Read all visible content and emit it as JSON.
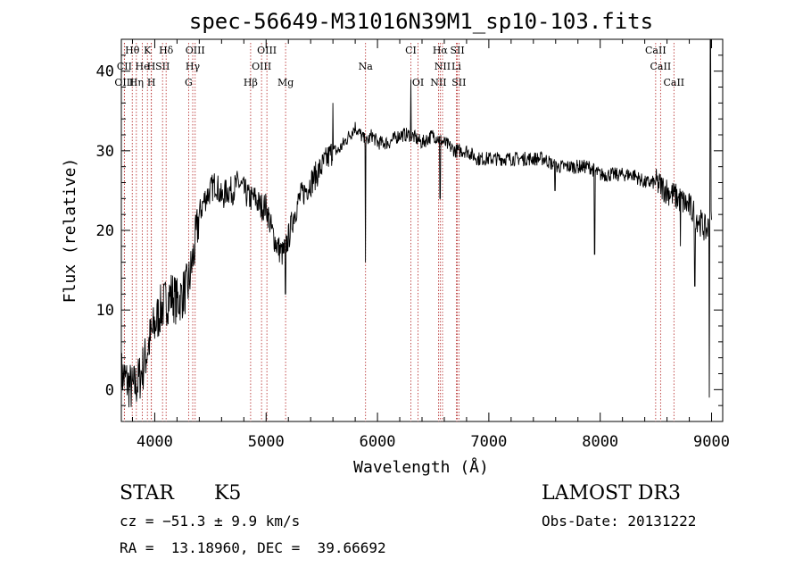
{
  "chart_data": {
    "type": "line",
    "title": "spec-56649-M31016N39M1_sp10-103.fits",
    "xlabel": "Wavelength (Å)",
    "ylabel": "Flux (relative)",
    "xlim": [
      3700,
      9100
    ],
    "ylim": [
      -4,
      44
    ],
    "xticks": [
      4000,
      5000,
      6000,
      7000,
      8000,
      9000
    ],
    "yticks": [
      0,
      10,
      20,
      30,
      40
    ],
    "xtick_labels": [
      "4000",
      "5000",
      "6000",
      "7000",
      "8000",
      "9000"
    ],
    "ytick_labels": [
      "0",
      "10",
      "20",
      "30",
      "40"
    ],
    "line_color": "#000000",
    "marker_color": "#b22222",
    "spectrum": {
      "name": "flux",
      "x": [
        3700,
        3750,
        3800,
        3850,
        3900,
        3950,
        4000,
        4050,
        4100,
        4150,
        4200,
        4250,
        4300,
        4350,
        4400,
        4450,
        4500,
        4550,
        4600,
        4650,
        4700,
        4750,
        4800,
        4850,
        4900,
        4950,
        5000,
        5050,
        5100,
        5150,
        5200,
        5250,
        5300,
        5350,
        5400,
        5450,
        5500,
        5550,
        5600,
        5650,
        5700,
        5750,
        5800,
        5850,
        5900,
        5950,
        6000,
        6100,
        6200,
        6300,
        6400,
        6500,
        6600,
        6700,
        6800,
        6900,
        7000,
        7100,
        7200,
        7300,
        7400,
        7500,
        7600,
        7700,
        7800,
        7900,
        8000,
        8100,
        8200,
        8300,
        8400,
        8500,
        8600,
        8700,
        8800,
        8900,
        8950,
        9000
      ],
      "y": [
        2,
        1,
        0,
        1,
        3,
        6,
        8,
        10,
        11,
        12,
        11,
        12,
        13,
        17,
        22,
        24,
        25,
        26,
        24,
        25,
        25,
        26,
        25,
        24,
        24,
        23,
        23,
        20,
        18,
        17,
        19,
        22,
        24,
        25,
        26,
        27,
        28,
        29,
        30,
        30,
        31,
        32,
        33,
        32,
        31,
        32,
        31,
        31,
        32,
        32,
        31,
        32,
        31,
        30,
        30,
        29,
        29,
        29,
        29,
        29,
        29,
        29,
        28,
        28,
        28,
        28,
        27,
        27,
        27,
        27,
        26,
        26,
        25,
        24,
        23,
        21,
        20,
        21
      ]
    },
    "dips": [
      {
        "x": 5175,
        "y": 12
      },
      {
        "x": 5892,
        "y": 16
      },
      {
        "x": 6563,
        "y": 24
      },
      {
        "x": 7594,
        "y": 25
      },
      {
        "x": 7950,
        "y": 17
      },
      {
        "x": 8720,
        "y": 18
      },
      {
        "x": 8850,
        "y": 13
      },
      {
        "x": 8980,
        "y": -1
      }
    ],
    "spikes": [
      {
        "x": 5600,
        "y": 36
      },
      {
        "x": 6300,
        "y": 39
      },
      {
        "x": 8990,
        "y": 44
      }
    ],
    "lines": [
      {
        "label": "Hθ",
        "x": 3798,
        "row": 0
      },
      {
        "label": "K",
        "x": 3934,
        "row": 0
      },
      {
        "label": "Hδ",
        "x": 4102,
        "row": 0
      },
      {
        "label": "OIII",
        "x": 4363,
        "row": 0
      },
      {
        "label": "OIII",
        "x": 5007,
        "row": 0
      },
      {
        "label": "CI",
        "x": 6300,
        "row": 0
      },
      {
        "label": "Hα",
        "x": 6563,
        "row": 0
      },
      {
        "label": "SII",
        "x": 6717,
        "row": 0
      },
      {
        "label": "CaII",
        "x": 8498,
        "row": 0
      },
      {
        "label": "CII",
        "x": 3727,
        "row": 1
      },
      {
        "label": "He",
        "x": 3889,
        "row": 1
      },
      {
        "label": "H",
        "x": 3969,
        "row": 1
      },
      {
        "label": "SII",
        "x": 4070,
        "row": 1
      },
      {
        "label": "Hγ",
        "x": 4341,
        "row": 1
      },
      {
        "label": "OIII",
        "x": 4959,
        "row": 1
      },
      {
        "label": "Na",
        "x": 5893,
        "row": 1
      },
      {
        "label": "NII",
        "x": 6584,
        "row": 1
      },
      {
        "label": "Li",
        "x": 6708,
        "row": 1
      },
      {
        "label": "CaII",
        "x": 8542,
        "row": 1
      },
      {
        "label": "OIII",
        "x": 3727,
        "row": 2
      },
      {
        "label": "Hη",
        "x": 3835,
        "row": 2
      },
      {
        "label": "H",
        "x": 3970,
        "row": 2
      },
      {
        "label": "G",
        "x": 4304,
        "row": 2
      },
      {
        "label": "Hβ",
        "x": 4861,
        "row": 2
      },
      {
        "label": "Mg",
        "x": 5175,
        "row": 2
      },
      {
        "label": "OI",
        "x": 6364,
        "row": 2
      },
      {
        "label": "NII",
        "x": 6548,
        "row": 2
      },
      {
        "label": "SII",
        "x": 6731,
        "row": 2
      },
      {
        "label": "CaII",
        "x": 8662,
        "row": 2
      }
    ]
  },
  "info": {
    "class_label": "STAR",
    "subclass": "K5",
    "cz": "cz = −51.3 ± 9.9 km/s",
    "coords": "RA =  13.18960, DEC =  39.66692",
    "survey": "LAMOST DR3",
    "obs_date": "Obs-Date: 20131222"
  }
}
